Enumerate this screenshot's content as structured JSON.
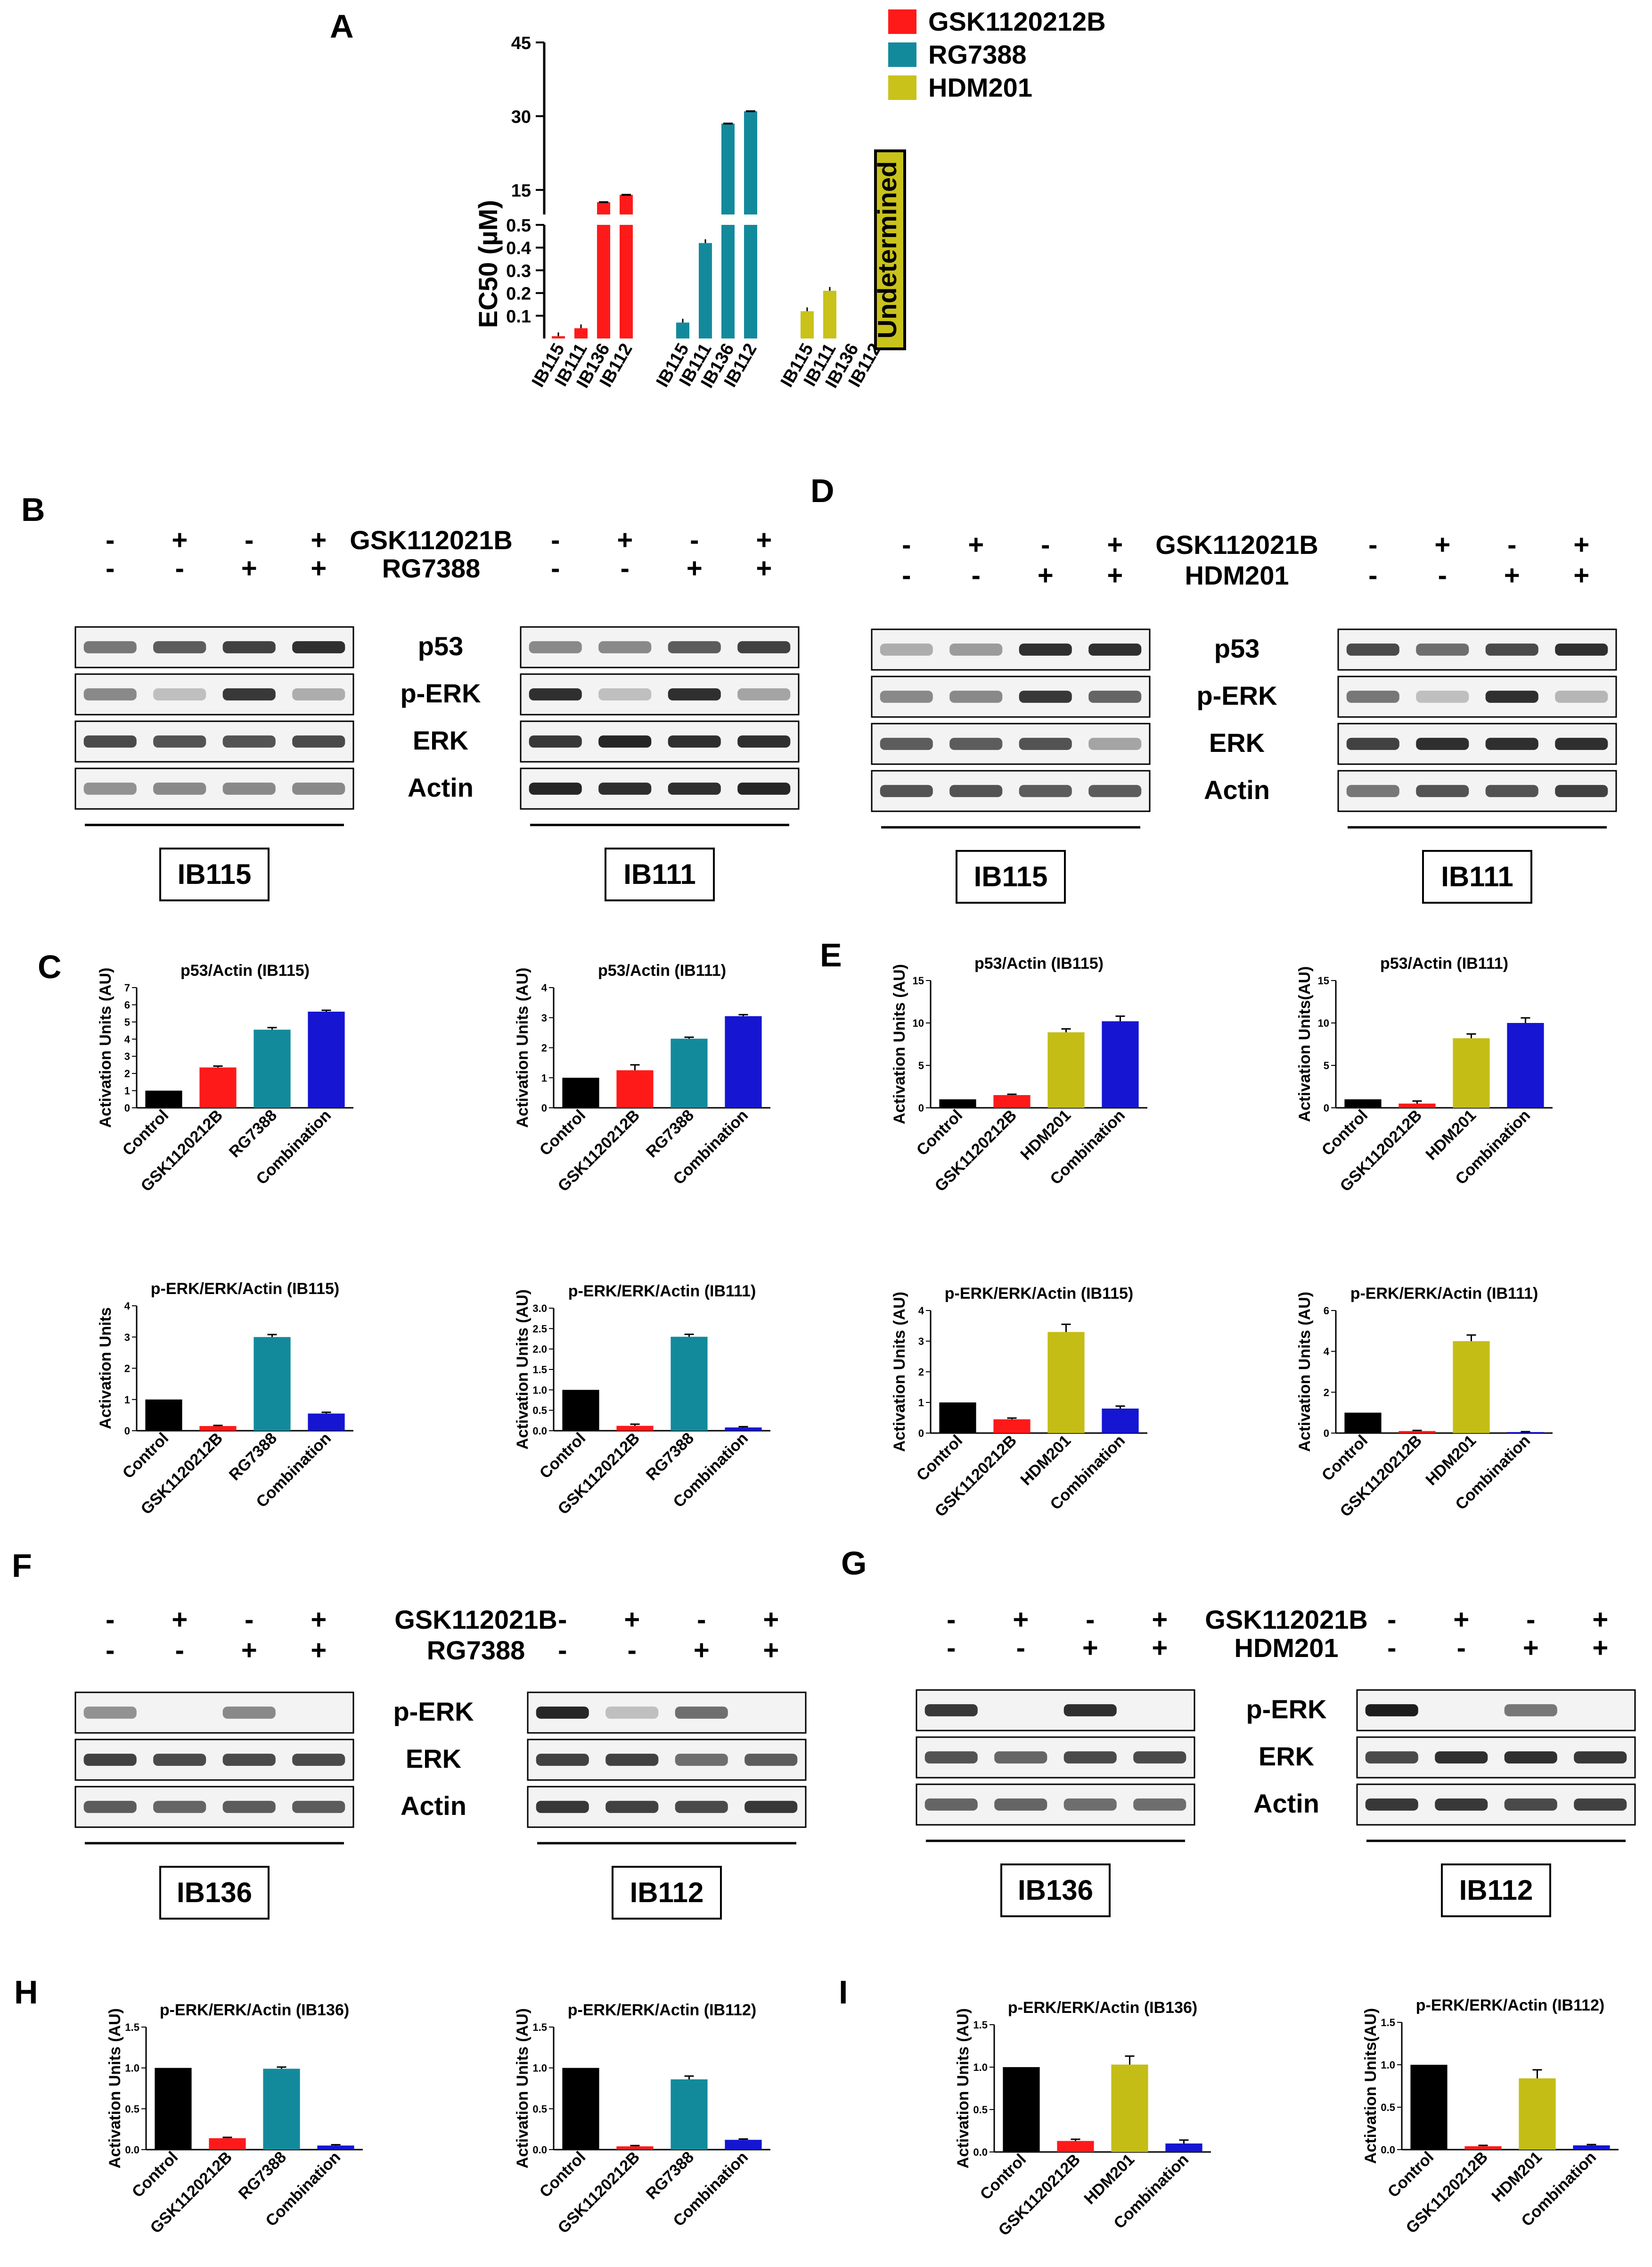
{
  "panels": {
    "A": "A",
    "B": "B",
    "C": "C",
    "D": "D",
    "E": "E",
    "F": "F",
    "G": "G",
    "H": "H",
    "I": "I"
  },
  "legend": [
    {
      "name": "GSK1120212B",
      "color": "#ff1a1a"
    },
    {
      "name": "RG7388",
      "color": "#138a9c"
    },
    {
      "name": "HDM201",
      "color": "#c9c21a"
    }
  ],
  "colors": {
    "control": "#000000",
    "gsk": "#ff1a1a",
    "rg": "#138a9c",
    "hdm": "#c4bd15",
    "combo": "#1515d2"
  },
  "blots": {
    "gsk_label": "GSK112021B",
    "rg_label": "RG7388",
    "hdm_label": "HDM201",
    "gsk_signs": [
      "-",
      "+",
      "-",
      "+"
    ],
    "partner_signs": [
      "-",
      "-",
      "+",
      "+"
    ],
    "proteins_BD": [
      "p53",
      "p-ERK",
      "ERK",
      "Actin"
    ],
    "proteins_FG": [
      "p-ERK",
      "ERK",
      "Actin"
    ],
    "cells": {
      "IB115": "IB115",
      "IB111": "IB111",
      "IB136": "IB136",
      "IB112": "IB112"
    }
  },
  "chart_data": [
    {
      "panel": "A",
      "type": "bar",
      "ylabel": "EC50 (µM)",
      "categories": [
        "IB115",
        "IB111",
        "IB136",
        "IB112"
      ],
      "y_ticks_low": [
        "0.1",
        "0.2",
        "0.3",
        "0.4",
        "0.5"
      ],
      "y_ticks_high": [
        "15",
        "30",
        "45"
      ],
      "series": [
        {
          "name": "GSK1120212B",
          "values": [
            0.01,
            0.045,
            12.5,
            14
          ]
        },
        {
          "name": "RG7388",
          "values": [
            0.07,
            0.42,
            28.5,
            31
          ]
        },
        {
          "name": "HDM201",
          "values": [
            0.12,
            0.21,
            null,
            null
          ]
        }
      ],
      "annotation": "Undetermined"
    },
    {
      "panel": "C",
      "type": "bar",
      "title": "p53/Actin (IB115)",
      "ylabel": "Activation Units (AU)",
      "categories": [
        "Control",
        "GSK1120212B",
        "RG7388",
        "Combination"
      ],
      "values": [
        1.0,
        2.35,
        4.55,
        5.6
      ],
      "errors": [
        0,
        0.08,
        0.12,
        0.08
      ],
      "ylim": [
        0,
        7
      ],
      "yticks": [
        "0",
        "1",
        "2",
        "3",
        "4",
        "5",
        "6",
        "7"
      ]
    },
    {
      "panel": "C",
      "type": "bar",
      "title": "p53/Actin (IB111)",
      "ylabel": "Activation Units (AU)",
      "categories": [
        "Control",
        "GSK1120212B",
        "RG7388",
        "Combination"
      ],
      "values": [
        1.0,
        1.25,
        2.3,
        3.05
      ],
      "errors": [
        0,
        0.18,
        0.05,
        0.05
      ],
      "ylim": [
        0,
        4
      ],
      "yticks": [
        "0",
        "1",
        "2",
        "3",
        "4"
      ]
    },
    {
      "panel": "C",
      "type": "bar",
      "title": "p-ERK/ERK/Actin (IB115)",
      "ylabel": "Activation Units",
      "categories": [
        "Control",
        "GSK1120212B",
        "RG7388",
        "Combination"
      ],
      "values": [
        1.0,
        0.15,
        3.0,
        0.55
      ],
      "errors": [
        0,
        0.02,
        0.08,
        0.04
      ],
      "ylim": [
        0,
        4
      ],
      "yticks": [
        "0",
        "1",
        "2",
        "3",
        "4"
      ]
    },
    {
      "panel": "C",
      "type": "bar",
      "title": "p-ERK/ERK/Actin (IB111)",
      "ylabel": "Activation Units (AU)",
      "categories": [
        "Control",
        "GSK1120212B",
        "RG7388",
        "Combination"
      ],
      "values": [
        1.0,
        0.12,
        2.3,
        0.08
      ],
      "errors": [
        0,
        0.04,
        0.06,
        0.02
      ],
      "ylim": [
        0,
        3
      ],
      "yticks": [
        "0.0",
        "0.5",
        "1.0",
        "1.5",
        "2.0",
        "2.5",
        "3.0"
      ]
    },
    {
      "panel": "E",
      "type": "bar",
      "title": "p53/Actin (IB115)",
      "ylabel": "Activation Units (AU)",
      "categories": [
        "Control",
        "GSK1120212B",
        "HDM201",
        "Combination"
      ],
      "values": [
        1.0,
        1.5,
        8.9,
        10.2
      ],
      "errors": [
        0,
        0.1,
        0.4,
        0.6
      ],
      "ylim": [
        0,
        15
      ],
      "yticks": [
        "0",
        "5",
        "10",
        "15"
      ]
    },
    {
      "panel": "E",
      "type": "bar",
      "title": "p53/Actin (IB111)",
      "ylabel": "Activation Units(AU)",
      "categories": [
        "Control",
        "GSK1120212B",
        "HDM201",
        "Combination"
      ],
      "values": [
        1.0,
        0.5,
        8.2,
        10.0
      ],
      "errors": [
        0,
        0.3,
        0.5,
        0.6
      ],
      "ylim": [
        0,
        15
      ],
      "yticks": [
        "0",
        "5",
        "10",
        "15"
      ]
    },
    {
      "panel": "E",
      "type": "bar",
      "title": "p-ERK/ERK/Actin (IB115)",
      "ylabel": "Activation Units (AU)",
      "categories": [
        "Control",
        "GSK1120212B",
        "HDM201",
        "Combination"
      ],
      "values": [
        1.0,
        0.45,
        3.3,
        0.8
      ],
      "errors": [
        0,
        0.04,
        0.25,
        0.08
      ],
      "ylim": [
        0,
        4
      ],
      "yticks": [
        "0",
        "1",
        "2",
        "3",
        "4"
      ]
    },
    {
      "panel": "E",
      "type": "bar",
      "title": "p-ERK/ERK/Actin (IB111)",
      "ylabel": "Activation Units (AU)",
      "categories": [
        "Control",
        "GSK1120212B",
        "HDM201",
        "Combination"
      ],
      "values": [
        1.0,
        0.1,
        4.5,
        0.05
      ],
      "errors": [
        0,
        0.03,
        0.3,
        0.02
      ],
      "ylim": [
        0,
        6
      ],
      "yticks": [
        "0",
        "2",
        "4",
        "6"
      ]
    },
    {
      "panel": "H",
      "type": "bar",
      "title": "p-ERK/ERK/Actin (IB136)",
      "ylabel": "Activation Units (AU)",
      "categories": [
        "Control",
        "GSK1120212B",
        "RG7388",
        "Combination"
      ],
      "values": [
        1.0,
        0.14,
        0.99,
        0.05
      ],
      "errors": [
        0,
        0.01,
        0.02,
        0.01
      ],
      "ylim": [
        0,
        1.5
      ],
      "yticks": [
        "0.0",
        "0.5",
        "1.0",
        "1.5"
      ]
    },
    {
      "panel": "H",
      "type": "bar",
      "title": "p-ERK/ERK/Actin (IB112)",
      "ylabel": "Activation Units (AU)",
      "categories": [
        "Control",
        "GSK1120212B",
        "RG7388",
        "Combination"
      ],
      "values": [
        1.0,
        0.04,
        0.86,
        0.12
      ],
      "errors": [
        0,
        0.01,
        0.04,
        0.01
      ],
      "ylim": [
        0,
        1.5
      ],
      "yticks": [
        "0.0",
        "0.5",
        "1.0",
        "1.5"
      ]
    },
    {
      "panel": "I",
      "type": "bar",
      "title": "p-ERK/ERK/Actin (IB136)",
      "ylabel": "Activation Units (AU)",
      "categories": [
        "Control",
        "GSK1120212B",
        "HDM201",
        "Combination"
      ],
      "values": [
        1.0,
        0.13,
        1.03,
        0.1
      ],
      "errors": [
        0,
        0.02,
        0.1,
        0.04
      ],
      "ylim": [
        0,
        1.5
      ],
      "yticks": [
        "0.0",
        "0.5",
        "1.0",
        "1.5"
      ]
    },
    {
      "panel": "I",
      "type": "bar",
      "title": "p-ERK/ERK/Actin (IB112)",
      "ylabel": "Activation Units(AU)",
      "categories": [
        "Control",
        "GSK1120212B",
        "HDM201",
        "Combination"
      ],
      "values": [
        1.0,
        0.04,
        0.84,
        0.05
      ],
      "errors": [
        0,
        0.01,
        0.1,
        0.01
      ],
      "ylim": [
        0,
        1.5
      ],
      "yticks": [
        "0.0",
        "0.5",
        "1.0",
        "1.5"
      ]
    }
  ]
}
